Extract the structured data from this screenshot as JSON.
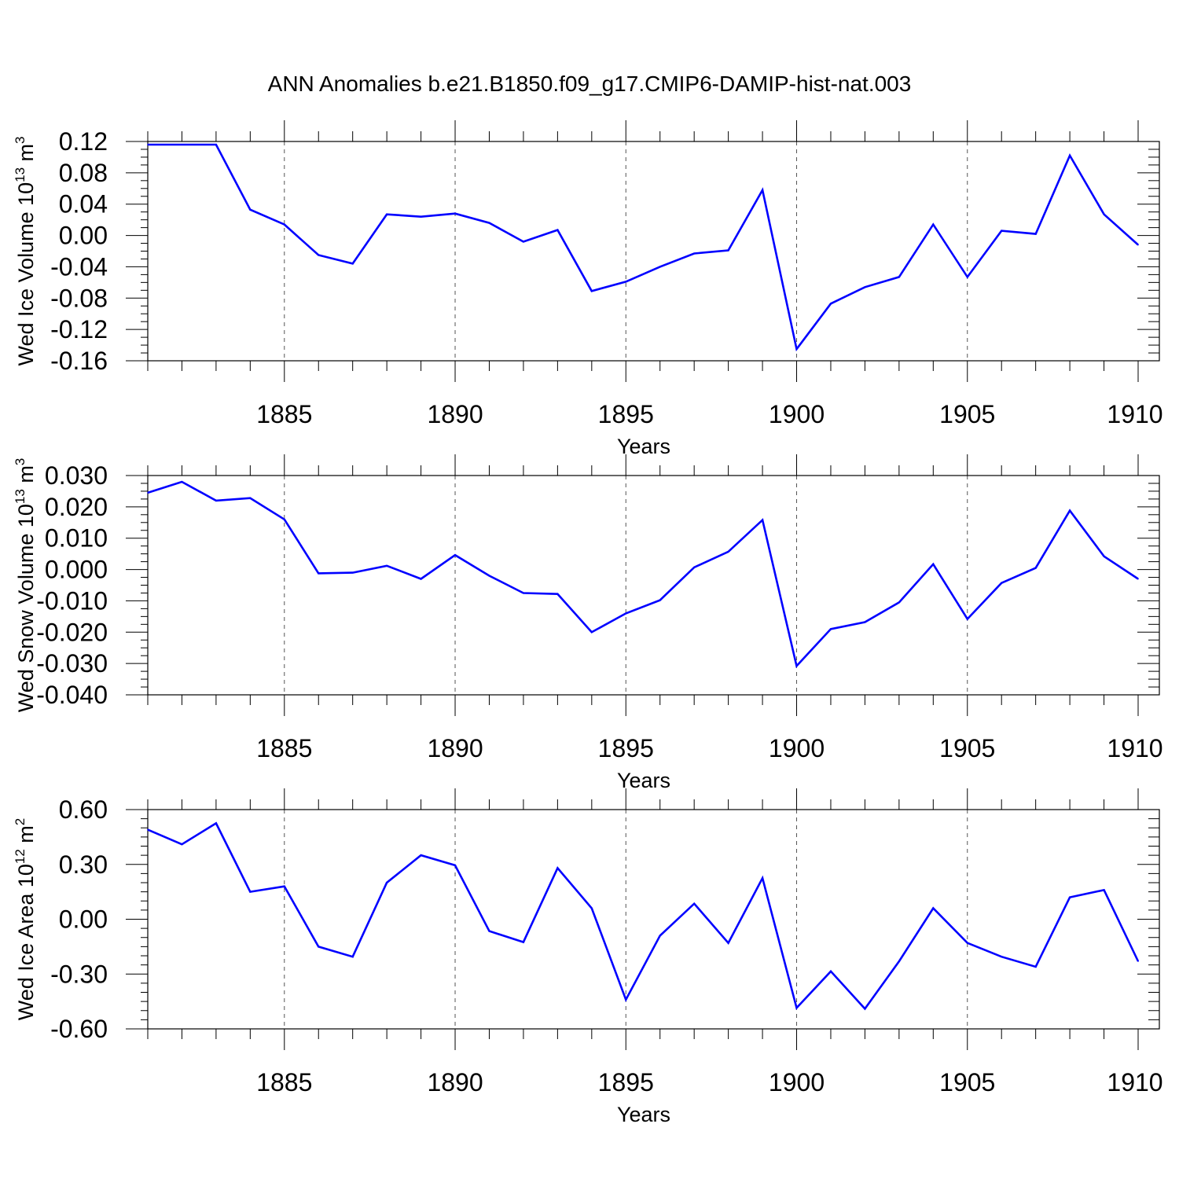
{
  "title": "ANN Anomalies b.e21.B1850.f09_g17.CMIP6-DAMIP-hist-nat.003",
  "line_color": "#0000ff",
  "chart_data": [
    {
      "type": "line",
      "ylabel": "Wed Ice Volume 10",
      "ylabel_exp": "13",
      "ylabel_unit": " m",
      "ylabel_unit_exp": "3",
      "xlabel": "Years",
      "xlim": [
        1881,
        1910
      ],
      "ylim": [
        -0.16,
        0.12
      ],
      "yticks": [
        0.12,
        0.08,
        0.04,
        0.0,
        -0.04,
        -0.08,
        -0.12,
        -0.16
      ],
      "ytick_labels": [
        "0.12",
        "0.08",
        "0.04",
        "0.00",
        "-0.04",
        "-0.08",
        "-0.12",
        "-0.16"
      ],
      "xticks": [
        1885,
        1890,
        1895,
        1900,
        1905,
        1910
      ],
      "xtick_labels": [
        "1885",
        "1890",
        "1895",
        "1900",
        "1905",
        "1910"
      ],
      "grid": "dashed vertical at major x ticks",
      "x": [
        1881,
        1882,
        1883,
        1884,
        1885,
        1886,
        1887,
        1888,
        1889,
        1890,
        1891,
        1892,
        1893,
        1894,
        1895,
        1896,
        1897,
        1898,
        1899,
        1900,
        1901,
        1902,
        1903,
        1904,
        1905,
        1906,
        1907,
        1908,
        1909,
        1910
      ],
      "values": [
        0.116,
        0.116,
        0.116,
        0.033,
        0.014,
        -0.025,
        -0.036,
        0.027,
        0.024,
        0.028,
        0.016,
        -0.008,
        0.007,
        -0.071,
        -0.059,
        -0.04,
        -0.023,
        -0.019,
        0.058,
        -0.145,
        -0.087,
        -0.066,
        -0.053,
        0.014,
        -0.053,
        0.006,
        0.002,
        0.102,
        0.027,
        -0.012
      ]
    },
    {
      "type": "line",
      "ylabel": "Wed Snow Volume 10",
      "ylabel_exp": "13",
      "ylabel_unit": " m",
      "ylabel_unit_exp": "3",
      "xlabel": "Years",
      "xlim": [
        1881,
        1910
      ],
      "ylim": [
        -0.04,
        0.03
      ],
      "yticks": [
        0.03,
        0.02,
        0.01,
        0.0,
        -0.01,
        -0.02,
        -0.03,
        -0.04
      ],
      "ytick_labels": [
        "0.030",
        "0.020",
        "0.010",
        "0.000",
        "-0.010",
        "-0.020",
        "-0.030",
        "-0.040"
      ],
      "xticks": [
        1885,
        1890,
        1895,
        1900,
        1905,
        1910
      ],
      "xtick_labels": [
        "1885",
        "1890",
        "1895",
        "1900",
        "1905",
        "1910"
      ],
      "grid": "dashed vertical at major x ticks",
      "x": [
        1881,
        1882,
        1883,
        1884,
        1885,
        1886,
        1887,
        1888,
        1889,
        1890,
        1891,
        1892,
        1893,
        1894,
        1895,
        1896,
        1897,
        1898,
        1899,
        1900,
        1901,
        1902,
        1903,
        1904,
        1905,
        1906,
        1907,
        1908,
        1909,
        1910
      ],
      "values": [
        0.0245,
        0.028,
        0.022,
        0.0228,
        0.016,
        -0.0012,
        -0.001,
        0.0012,
        -0.003,
        0.0046,
        -0.002,
        -0.0075,
        -0.0078,
        -0.02,
        -0.014,
        -0.0098,
        0.0007,
        0.0057,
        0.0158,
        -0.0308,
        -0.019,
        -0.0168,
        -0.0105,
        0.0017,
        -0.0158,
        -0.0043,
        0.0005,
        0.0188,
        0.0042,
        -0.003
      ]
    },
    {
      "type": "line",
      "ylabel": "Wed Ice Area 10",
      "ylabel_exp": "12",
      "ylabel_unit": " m",
      "ylabel_unit_exp": "2",
      "xlabel": "Years",
      "xlim": [
        1881,
        1910
      ],
      "ylim": [
        -0.6,
        0.6
      ],
      "yticks": [
        0.6,
        0.3,
        0.0,
        -0.3,
        -0.6
      ],
      "ytick_labels": [
        "0.60",
        "0.30",
        "0.00",
        "-0.30",
        "-0.60"
      ],
      "xticks": [
        1885,
        1890,
        1895,
        1900,
        1905,
        1910
      ],
      "xtick_labels": [
        "1885",
        "1890",
        "1895",
        "1900",
        "1905",
        "1910"
      ],
      "grid": "dashed vertical at major x ticks",
      "x": [
        1881,
        1882,
        1883,
        1884,
        1885,
        1886,
        1887,
        1888,
        1889,
        1890,
        1891,
        1892,
        1893,
        1894,
        1895,
        1896,
        1897,
        1898,
        1899,
        1900,
        1901,
        1902,
        1903,
        1904,
        1905,
        1906,
        1907,
        1908,
        1909,
        1910
      ],
      "values": [
        0.49,
        0.41,
        0.525,
        0.15,
        0.18,
        -0.15,
        -0.205,
        0.2,
        0.35,
        0.295,
        -0.065,
        -0.125,
        0.28,
        0.06,
        -0.44,
        -0.09,
        0.085,
        -0.13,
        0.225,
        -0.485,
        -0.285,
        -0.49,
        -0.23,
        0.06,
        -0.13,
        -0.205,
        -0.26,
        0.12,
        0.16,
        -0.23
      ]
    }
  ]
}
